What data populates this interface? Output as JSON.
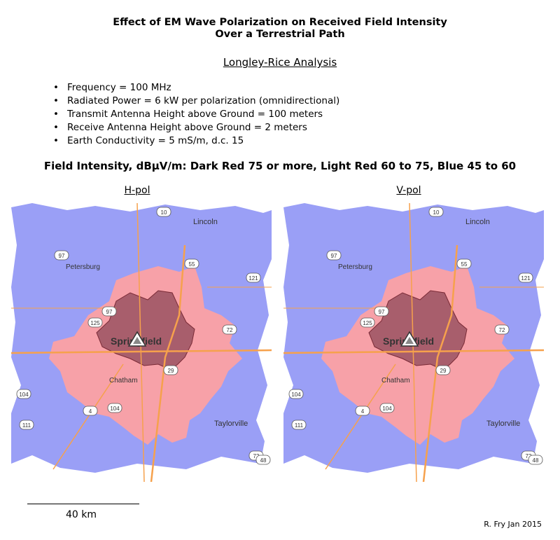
{
  "title_line1": "Effect of EM Wave Polarization on Received Field Intensity",
  "title_line2": "Over a Terrestrial Path",
  "subtitle": "Longley-Rice Analysis",
  "parameters": [
    "Frequency = 100 MHz",
    "Radiated Power = 6 kW per polarization (omnidirectional)",
    "Transmit Antenna Height above Ground = 100 meters",
    "Receive Antenna Height above Ground = 2 meters",
    "Earth Conductivity = 5 mS/m, d.c. 15"
  ],
  "legend": "Field Intensity, dBµV/m:  Dark Red  75 or more, Light Red 60 to 75, Blue 45 to 60",
  "colors": {
    "dark_red": "#a85e6c",
    "light_red": "#f7a1a8",
    "blue": "#9a9ff6",
    "road": "#f6a14c",
    "background": "#ffffff"
  },
  "maps": [
    {
      "label": "H-pol"
    },
    {
      "label": "V-pol"
    }
  ],
  "map_labels": {
    "city": "Springfield",
    "lincoln": "Lincoln",
    "petersburg": "Petersburg",
    "chatham": "Chatham",
    "taylorville": "Taylorville",
    "shields": [
      "10",
      "97",
      "55",
      "121",
      "97",
      "125",
      "72",
      "29",
      "104",
      "4",
      "104",
      "111",
      "72",
      "48"
    ]
  },
  "scale_label": "40 km",
  "credit": "R. Fry Jan 2015"
}
